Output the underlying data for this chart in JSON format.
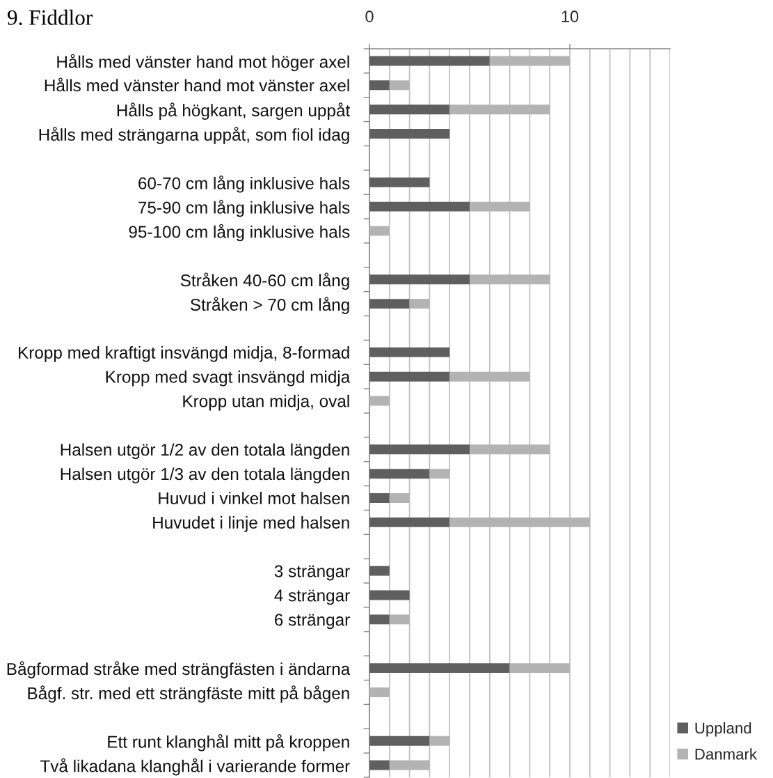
{
  "chart_data": {
    "type": "bar",
    "orientation": "horizontal",
    "stacked": true,
    "title": "9. Fiddlor",
    "categories": [
      "Hålls med vänster hand mot höger axel",
      "Hålls med vänster hand mot vänster axel",
      "Hålls på högkant, sargen uppåt",
      "Hålls med strängarna uppåt, som fiol idag",
      null,
      "60-70 cm lång inklusive hals",
      "75-90 cm lång inklusive hals",
      "95-100 cm lång inklusive hals",
      null,
      "Stråken 40-60 cm lång",
      "Stråken > 70 cm lång",
      null,
      "Kropp med kraftigt insvängd midja, 8-formad",
      "Kropp med svagt insvängd midja",
      "Kropp utan midja, oval",
      null,
      "Halsen utgör 1/2 av den totala längden",
      "Halsen utgör 1/3 av den totala längden",
      "Huvud i vinkel mot halsen",
      "Huvudet i linje med halsen",
      null,
      "3 strängar",
      "4 strängar",
      "6 strängar",
      null,
      "Bågformad stråke med strängfästen i ändarna",
      "Bågf. str. med ett strängfäste mitt på bågen",
      null,
      "Ett runt klanghål mitt på kroppen",
      "Två likadana klanghål i varierande former"
    ],
    "series": [
      {
        "name": "Uppland",
        "color": "#5f5f5f",
        "values": [
          6,
          1,
          4,
          4,
          null,
          3,
          5,
          null,
          null,
          5,
          2,
          null,
          4,
          4,
          null,
          null,
          5,
          3,
          1,
          4,
          null,
          1,
          2,
          1,
          null,
          7,
          null,
          null,
          3,
          1
        ]
      },
      {
        "name": "Danmark",
        "color": "#b3b3b3",
        "values": [
          4,
          1,
          5,
          null,
          null,
          null,
          3,
          1,
          null,
          4,
          1,
          null,
          null,
          4,
          1,
          null,
          4,
          1,
          1,
          7,
          null,
          null,
          null,
          1,
          null,
          3,
          1,
          null,
          1,
          2
        ]
      }
    ],
    "xlim": [
      0,
      15
    ],
    "xticks": [
      0,
      {
        "value": 1,
        "label": null
      },
      {
        "value": 2,
        "label": null
      },
      {
        "value": 3,
        "label": null
      },
      {
        "value": 4,
        "label": null
      },
      {
        "value": 5,
        "label": null
      },
      {
        "value": 6,
        "label": null
      },
      {
        "value": 7,
        "label": null
      },
      {
        "value": 8,
        "label": null
      },
      {
        "value": 9,
        "label": null
      },
      10,
      {
        "value": 11,
        "label": null
      },
      {
        "value": 12,
        "label": null
      },
      {
        "value": 13,
        "label": null
      },
      {
        "value": 14,
        "label": null
      },
      {
        "value": 15,
        "label": null
      }
    ],
    "grid": "x",
    "legend": "bottom right"
  }
}
